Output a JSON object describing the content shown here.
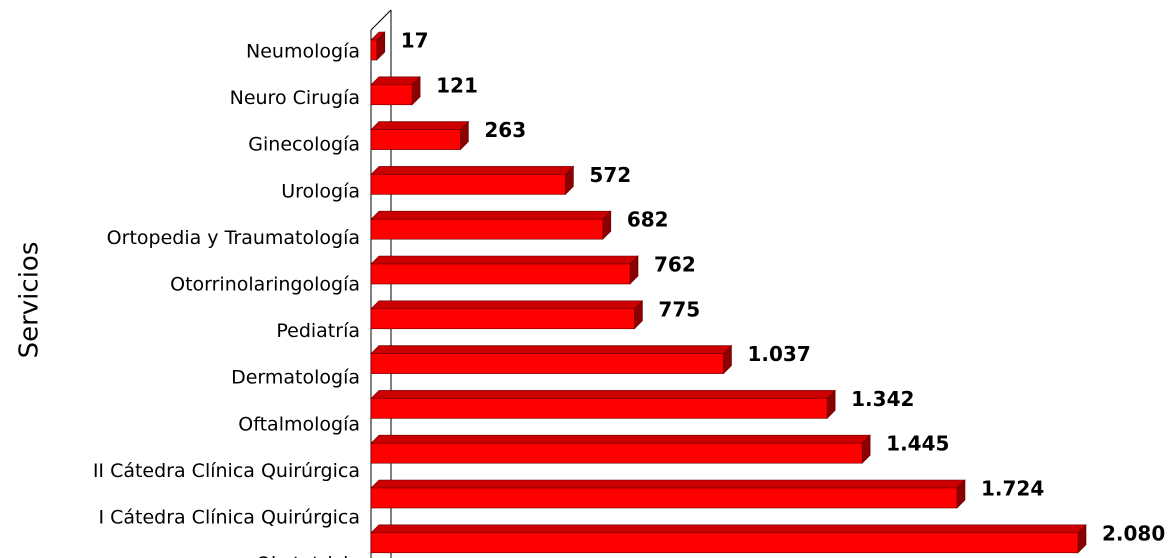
{
  "chart_data": {
    "type": "bar3d",
    "orientation": "horizontal",
    "ylabel": "Servicios",
    "categories": [
      "Neumología",
      "Neuro Cirugía",
      "Ginecología",
      "Urología",
      "Ortopedia y Traumatología",
      "Otorrinolaringología",
      "Pediatría",
      "Dermatología",
      "Oftalmología",
      "II Cátedra Clínica Quirúrgica",
      "I Cátedra Clínica Quirúrgica",
      "Obstetricia"
    ],
    "values": [
      17,
      121,
      263,
      572,
      682,
      762,
      775,
      1037,
      1342,
      1445,
      1724,
      2080
    ],
    "value_labels": [
      "17",
      "121",
      "263",
      "572",
      "682",
      "762",
      "775",
      "1.037",
      "1.342",
      "1.445",
      "1.724",
      "2.080"
    ],
    "color": "#ff0000"
  }
}
